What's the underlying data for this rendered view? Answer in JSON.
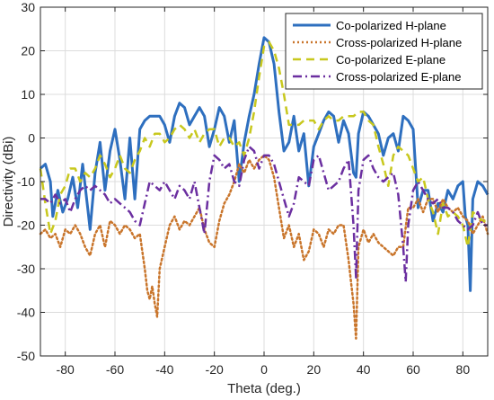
{
  "chart_data": {
    "type": "line",
    "title": "",
    "xlabel": "Theta (deg.)",
    "ylabel": "Directivity (dBi)",
    "xlim": [
      -90,
      90
    ],
    "ylim": [
      -50,
      30
    ],
    "xticks": [
      -80,
      -60,
      -40,
      -20,
      0,
      20,
      40,
      60,
      80
    ],
    "yticks": [
      -50,
      -40,
      -30,
      -20,
      -10,
      0,
      10,
      20,
      30
    ],
    "grid": true,
    "legend_position": "top-right",
    "series": [
      {
        "name": "Co-polarized H-plane",
        "color": "#2e6fbf",
        "style": "solid",
        "x": [
          -90,
          -88,
          -86,
          -85,
          -83,
          -81,
          -79,
          -77,
          -75,
          -73,
          -71,
          -70,
          -68,
          -66,
          -64,
          -62,
          -60,
          -58,
          -56,
          -54,
          -52,
          -50,
          -48,
          -46,
          -44,
          -42,
          -40,
          -38,
          -36,
          -34,
          -32,
          -30,
          -28,
          -26,
          -24,
          -22,
          -20,
          -18,
          -16,
          -14,
          -12,
          -10,
          -8,
          -6,
          -4,
          -2,
          0,
          2,
          4,
          6,
          8,
          9,
          10,
          12,
          14,
          16,
          18,
          20,
          22,
          24,
          26,
          28,
          30,
          32,
          34,
          36,
          37,
          38,
          40,
          42,
          44,
          46,
          48,
          50,
          52,
          54,
          56,
          58,
          60,
          62,
          64,
          66,
          68,
          70,
          72,
          74,
          76,
          78,
          80,
          81,
          82,
          83,
          84,
          86,
          88,
          90
        ],
        "y": [
          -7,
          -6,
          -10,
          -18,
          -12,
          -17,
          -14,
          -9,
          -16,
          -6,
          -16,
          -21,
          -8,
          -1,
          -12,
          -3,
          2,
          -5,
          -14,
          0,
          -14,
          2,
          4,
          5,
          5,
          5,
          3,
          -1,
          5,
          8,
          7,
          3,
          5,
          7,
          5,
          -2,
          2,
          7,
          5,
          -1,
          4,
          -10,
          -1,
          5,
          10,
          17,
          23,
          22,
          17,
          6,
          -3,
          -2,
          -1,
          5,
          -3,
          1,
          -11,
          -2,
          1,
          4,
          6,
          5,
          -1,
          4,
          1,
          -8,
          -9,
          1,
          6,
          5,
          3,
          1,
          -4,
          0,
          1,
          -3,
          5,
          4,
          2,
          -16,
          -12,
          -12,
          -19,
          -15,
          -17,
          -12,
          -14,
          -11,
          -10,
          -18,
          -20,
          -35,
          -14,
          -10,
          -11,
          -13
        ]
      },
      {
        "name": "Cross-polarized H-plane",
        "color": "#c9752b",
        "style": "dotted",
        "x": [
          -90,
          -88,
          -86,
          -84,
          -82,
          -80,
          -78,
          -76,
          -74,
          -72,
          -70,
          -68,
          -66,
          -64,
          -62,
          -60,
          -58,
          -56,
          -54,
          -52,
          -50,
          -48,
          -47,
          -46,
          -45,
          -44,
          -43,
          -42,
          -40,
          -38,
          -36,
          -34,
          -32,
          -30,
          -28,
          -26,
          -24,
          -22,
          -20,
          -18,
          -16,
          -14,
          -12,
          -10,
          -8,
          -6,
          -4,
          -2,
          0,
          2,
          4,
          6,
          8,
          10,
          12,
          14,
          16,
          18,
          20,
          22,
          24,
          26,
          28,
          30,
          32,
          34,
          35,
          36,
          37,
          38,
          40,
          42,
          44,
          46,
          48,
          50,
          52,
          54,
          56,
          58,
          60,
          62,
          64,
          66,
          68,
          70,
          72,
          74,
          76,
          78,
          80,
          82,
          84,
          86,
          88,
          90
        ],
        "y": [
          -22,
          -21,
          -23,
          -22,
          -25,
          -21,
          -22,
          -20,
          -22,
          -25,
          -27,
          -22,
          -20,
          -25,
          -19,
          -20,
          -22,
          -20,
          -21,
          -23,
          -22,
          -30,
          -35,
          -37,
          -34,
          -38,
          -41,
          -30,
          -25,
          -20,
          -18,
          -21,
          -19,
          -20,
          -18,
          -16,
          -21,
          -24,
          -25,
          -19,
          -15,
          -13,
          -10,
          -6,
          -8,
          -5,
          -7,
          -5,
          -4,
          -5,
          -9,
          -16,
          -23,
          -20,
          -25,
          -22,
          -28,
          -26,
          -21,
          -22,
          -25,
          -21,
          -22,
          -20,
          -20,
          -28,
          -33,
          -38,
          -46,
          -25,
          -21,
          -24,
          -22,
          -24,
          -25,
          -26,
          -27,
          -25,
          -25,
          -16,
          -16,
          -14,
          -17,
          -14,
          -14,
          -17,
          -14,
          -16,
          -17,
          -16,
          -18,
          -19,
          -22,
          -20,
          -18,
          -22
        ]
      },
      {
        "name": "Co-polarized E-plane",
        "color": "#c8c81e",
        "style": "dashed",
        "x": [
          -90,
          -88,
          -86,
          -84,
          -82,
          -80,
          -78,
          -76,
          -74,
          -72,
          -70,
          -68,
          -66,
          -64,
          -62,
          -60,
          -58,
          -56,
          -54,
          -52,
          -50,
          -48,
          -46,
          -44,
          -42,
          -40,
          -38,
          -36,
          -34,
          -32,
          -30,
          -28,
          -26,
          -24,
          -22,
          -20,
          -18,
          -16,
          -14,
          -12,
          -10,
          -8,
          -6,
          -4,
          -2,
          0,
          2,
          4,
          6,
          8,
          10,
          12,
          14,
          16,
          18,
          20,
          22,
          24,
          26,
          28,
          30,
          32,
          34,
          36,
          38,
          40,
          42,
          44,
          46,
          48,
          50,
          52,
          54,
          56,
          58,
          60,
          62,
          64,
          66,
          68,
          70,
          72,
          74,
          76,
          78,
          80,
          82,
          84,
          86,
          88,
          90
        ],
        "y": [
          -7,
          -15,
          -22,
          -19,
          -13,
          -11,
          -7,
          -7,
          -10,
          -8,
          -9,
          -7,
          -4,
          -6,
          -9,
          -7,
          -4,
          -7,
          -8,
          -5,
          -3,
          0,
          -2,
          1,
          1,
          -1,
          0,
          2,
          3,
          2,
          0,
          2,
          -1,
          1,
          2,
          2,
          -2,
          0,
          0,
          -2,
          -1,
          -4,
          0,
          6,
          14,
          21,
          22,
          20,
          16,
          10,
          3,
          3,
          3,
          4,
          4,
          4,
          2,
          4,
          5,
          4,
          4,
          5,
          5,
          5,
          6,
          6,
          4,
          3,
          -2,
          -6,
          -11,
          -4,
          -2,
          -3,
          -4,
          -7,
          -10,
          -9,
          -14,
          -17,
          -22,
          -15,
          -18,
          -17,
          -18,
          -20,
          -25,
          -17,
          -18,
          -19,
          -19
        ]
      },
      {
        "name": "Cross-polarized E-plane",
        "color": "#6b2fa0",
        "style": "dashdot",
        "x": [
          -90,
          -88,
          -86,
          -84,
          -82,
          -80,
          -78,
          -76,
          -74,
          -72,
          -70,
          -68,
          -66,
          -64,
          -62,
          -60,
          -58,
          -56,
          -54,
          -52,
          -50,
          -48,
          -46,
          -44,
          -42,
          -40,
          -38,
          -36,
          -34,
          -32,
          -30,
          -28,
          -26,
          -24,
          -22,
          -20,
          -18,
          -16,
          -14,
          -12,
          -10,
          -8,
          -6,
          -4,
          -2,
          0,
          2,
          4,
          6,
          8,
          10,
          12,
          14,
          16,
          18,
          20,
          22,
          24,
          26,
          28,
          30,
          32,
          34,
          36,
          37,
          38,
          40,
          42,
          44,
          46,
          48,
          50,
          52,
          54,
          56,
          57,
          58,
          60,
          62,
          64,
          66,
          68,
          70,
          72,
          74,
          76,
          78,
          80,
          82,
          84,
          86,
          88,
          90
        ],
        "y": [
          -14,
          -14,
          -15,
          -13,
          -15,
          -14,
          -17,
          -14,
          -12,
          -11,
          -12,
          -11,
          -12,
          -13,
          -15,
          -14,
          -15,
          -16,
          -17,
          -19,
          -20,
          -15,
          -10,
          -11,
          -12,
          -10,
          -12,
          -14,
          -11,
          -12,
          -14,
          -10,
          -16,
          -22,
          -10,
          -4,
          -5,
          -7,
          -6,
          -10,
          -11,
          -5,
          -2,
          -3,
          -7,
          -4,
          -4,
          -6,
          -10,
          -14,
          -18,
          -15,
          -9,
          -10,
          -11,
          -5,
          -4,
          -8,
          -12,
          -11,
          -10,
          -7,
          -5,
          -20,
          -32,
          -12,
          -5,
          -4,
          -7,
          -9,
          -10,
          -9,
          -8,
          -13,
          -25,
          -33,
          -20,
          -12,
          -10,
          -12,
          -14,
          -15,
          -14,
          -16,
          -16,
          -17,
          -19,
          -20,
          -21,
          -20,
          -17,
          -20,
          -20
        ]
      }
    ]
  }
}
